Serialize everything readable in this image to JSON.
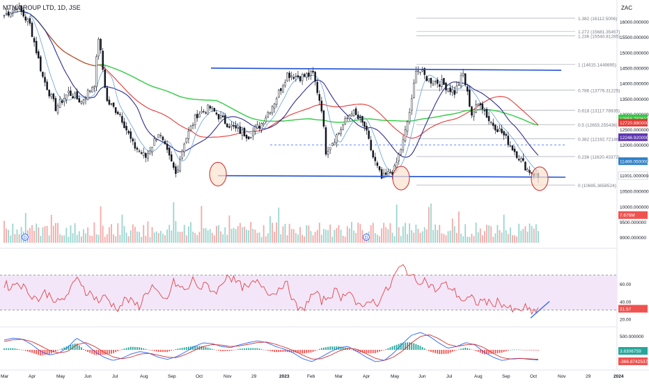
{
  "header": {
    "title": "MTN GROUP LTD, 1D, JSE",
    "currency": "ZAC"
  },
  "colors": {
    "up": "#131722",
    "down": "#131722",
    "ma_green": "#2ecc40",
    "ma_red": "#e53935",
    "ma_navy": "#2e2c8f",
    "ma_blue": "#64a0d8",
    "trend": "#1e4fd8",
    "rsi": "#e0454b",
    "rsi_band": "#f3e6f8",
    "macd": "#2962ff",
    "signal": "#d32f2f",
    "hist_up": "#26a69a",
    "hist_down": "#ef5350",
    "circle_fill": "#fbe3cf",
    "circle_stroke": "#d13438"
  },
  "chart_data": [
    {
      "type": "candlestick",
      "title": "MTN GROUP LTD, 1D, JSE",
      "xlabel": "",
      "ylabel": "",
      "ylim": [
        8800,
        16700
      ],
      "x_ticks": [
        "Mar",
        "Apr",
        "May",
        "Jun",
        "Jul",
        "Aug",
        "Sep",
        "Oct",
        "Nov",
        "29",
        "2023",
        "Feb",
        "Mar",
        "Apr",
        "May",
        "Jun",
        "Jul",
        "Aug",
        "Sep",
        "Oct",
        "Nov",
        "29",
        "2024"
      ],
      "y_ticks": [
        "16000.000000",
        "15500.000000",
        "15000.000000",
        "14500.000000",
        "14000.000000",
        "13500.000000",
        "13000.000000",
        "12500.000000",
        "12000.000000",
        "11500.000000",
        "11000.000000",
        "10500.000000",
        "10000.000000",
        "9500.000000",
        "9000.000000"
      ],
      "close_path": [
        [
          0,
          16200
        ],
        [
          6,
          16500
        ],
        [
          12,
          15900
        ],
        [
          18,
          14200
        ],
        [
          24,
          13200
        ],
        [
          30,
          13700
        ],
        [
          36,
          13400
        ],
        [
          42,
          14000
        ],
        [
          44,
          15500
        ],
        [
          48,
          13400
        ],
        [
          54,
          13000
        ],
        [
          60,
          12000
        ],
        [
          66,
          11600
        ],
        [
          72,
          12400
        ],
        [
          78,
          11400
        ],
        [
          80,
          11050
        ],
        [
          84,
          12100
        ],
        [
          90,
          13000
        ],
        [
          96,
          13200
        ],
        [
          102,
          12800
        ],
        [
          108,
          12500
        ],
        [
          114,
          12300
        ],
        [
          120,
          12700
        ],
        [
          126,
          13400
        ],
        [
          132,
          14300
        ],
        [
          138,
          14200
        ],
        [
          144,
          14300
        ],
        [
          148,
          13200
        ],
        [
          150,
          11800
        ],
        [
          156,
          12400
        ],
        [
          162,
          13100
        ],
        [
          168,
          12600
        ],
        [
          172,
          11600
        ],
        [
          176,
          10900
        ],
        [
          182,
          11200
        ],
        [
          186,
          12100
        ],
        [
          190,
          13400
        ],
        [
          192,
          14500
        ],
        [
          198,
          14100
        ],
        [
          204,
          14000
        ],
        [
          210,
          13700
        ],
        [
          214,
          14300
        ],
        [
          218,
          13000
        ],
        [
          222,
          13400
        ],
        [
          226,
          12800
        ],
        [
          232,
          12400
        ],
        [
          238,
          11800
        ],
        [
          244,
          11200
        ],
        [
          248,
          11000
        ],
        [
          250,
          10850
        ]
      ],
      "fib_levels": [
        {
          "label": "1.382 (16112.5006)",
          "value": 16112.5006
        },
        {
          "label": "1.272 (15681.35457)",
          "value": 15681.35457
        },
        {
          "label": "1.236 (15540.81285)",
          "value": 15540.81285
        },
        {
          "label": "1 (14615.1449895)",
          "value": 14615.1449895
        },
        {
          "label": "0.786 (13776.31225)",
          "value": 13776.31225
        },
        {
          "label": "0.618 (13117.78935)",
          "value": 13117.78935
        },
        {
          "label": "0.5 (12655.255436)",
          "value": 12655.255436
        },
        {
          "label": "0.382 (12192.72146)",
          "value": 12192.72146
        },
        {
          "label": "0.236 (11620.43372)",
          "value": 11620.43372
        },
        {
          "label": "0 (10695.3658524)",
          "value": 10695.3658524
        }
      ],
      "price_tags": [
        {
          "label": "12856.782612",
          "value": 12856.782612,
          "color": "#2ecc40"
        },
        {
          "label": "12720.880000",
          "value": 12720.88,
          "color": "#e53935"
        },
        {
          "label": "12246.920000",
          "value": 12246.92,
          "color": "#5e35b1"
        },
        {
          "label": "11469.050000",
          "value": 11469.05,
          "color": "#2f80c8"
        },
        {
          "label": "11001.000000",
          "value": 11001.0,
          "color": "#ffffff"
        },
        {
          "label": "7.676M",
          "value": 9720,
          "color": "#ef5350"
        }
      ],
      "resistance": [
        14490,
        14420
      ],
      "support": [
        11000,
        10950
      ]
    },
    {
      "type": "line",
      "name": "RSI",
      "ylim": [
        14,
        92
      ],
      "levels": [
        70,
        30
      ],
      "y_ticks": [
        "60.00",
        "40.00",
        "20.00"
      ],
      "current": "31.57",
      "values": [
        60,
        56,
        63,
        55,
        48,
        42,
        50,
        46,
        38,
        44,
        56,
        68,
        52,
        48,
        40,
        46,
        36,
        32,
        44,
        38,
        35,
        50,
        58,
        44,
        40,
        62,
        56,
        52,
        66,
        54,
        60,
        50,
        56,
        72,
        64,
        58,
        54,
        62,
        60,
        52,
        48,
        60,
        58,
        36,
        28,
        42,
        50,
        40,
        46,
        52,
        44,
        56,
        38,
        30,
        44,
        36,
        48,
        56,
        74,
        80,
        72,
        62,
        66,
        58,
        52,
        60,
        56,
        48,
        40,
        44,
        38,
        42,
        36,
        40,
        36,
        30,
        28,
        34,
        26,
        32
      ]
    },
    {
      "type": "line",
      "name": "MACD",
      "y_ticks": [
        "500.000000"
      ],
      "tags": [
        "3.8306759",
        "-366.8742537"
      ],
      "macd": [
        350,
        420,
        380,
        200,
        -50,
        -180,
        -120,
        80,
        420,
        220,
        -60,
        -260,
        -380,
        -300,
        -150,
        -60,
        -120,
        -260,
        -340,
        -250,
        -80,
        120,
        250,
        220,
        120,
        80,
        180,
        260,
        320,
        260,
        120,
        20,
        -120,
        -320,
        -420,
        -260,
        -80,
        80,
        120,
        -60,
        -260,
        -420,
        -380,
        -120,
        220,
        520,
        620,
        480,
        250,
        60,
        120,
        260,
        180,
        -80,
        -260,
        -380,
        -320,
        -300,
        -340,
        -360
      ],
      "signal": [
        300,
        360,
        380,
        300,
        150,
        -20,
        -110,
        -60,
        180,
        260,
        120,
        -80,
        -250,
        -320,
        -260,
        -150,
        -120,
        -190,
        -260,
        -280,
        -170,
        -20,
        120,
        190,
        170,
        120,
        140,
        200,
        260,
        280,
        200,
        90,
        -30,
        -190,
        -330,
        -320,
        -200,
        -40,
        60,
        20,
        -140,
        -300,
        -380,
        -260,
        -40,
        250,
        480,
        540,
        400,
        200,
        120,
        180,
        200,
        80,
        -120,
        -280,
        -330,
        -310,
        -320,
        -340
      ]
    }
  ]
}
